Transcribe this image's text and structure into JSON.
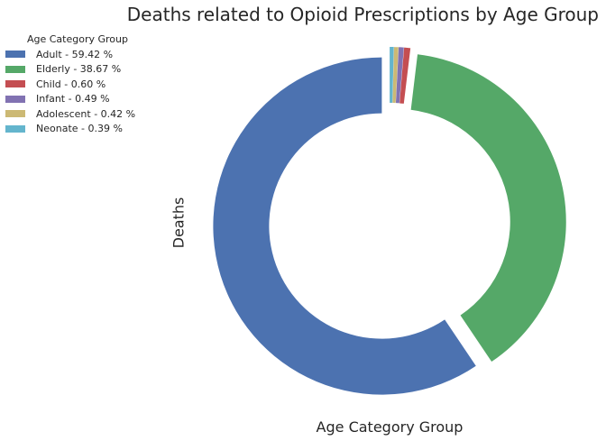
{
  "chart_data": {
    "type": "pie",
    "donut": true,
    "title": "Deaths related to Opioid Prescriptions by Age Group",
    "xlabel": "Age Category Group",
    "ylabel": "Deaths",
    "legend_title": "Age Category Group",
    "legend_position": "top-left",
    "slices": [
      {
        "label": "Adult",
        "percent": 59.42,
        "legend_text": "Adult - 59.42 %",
        "color": "#4c72b0"
      },
      {
        "label": "Elderly",
        "percent": 38.67,
        "legend_text": "Elderly - 38.67 %",
        "color": "#55a868"
      },
      {
        "label": "Child",
        "percent": 0.6,
        "legend_text": "Child - 0.60 %",
        "color": "#c44e52"
      },
      {
        "label": "Infant",
        "percent": 0.49,
        "legend_text": "Infant - 0.49 %",
        "color": "#8172b2"
      },
      {
        "label": "Adolescent",
        "percent": 0.42,
        "legend_text": "Adolescent - 0.42 %",
        "color": "#ccb974"
      },
      {
        "label": "Neonate",
        "percent": 0.39,
        "legend_text": "Neonate - 0.39 %",
        "color": "#64b5cd"
      }
    ]
  }
}
